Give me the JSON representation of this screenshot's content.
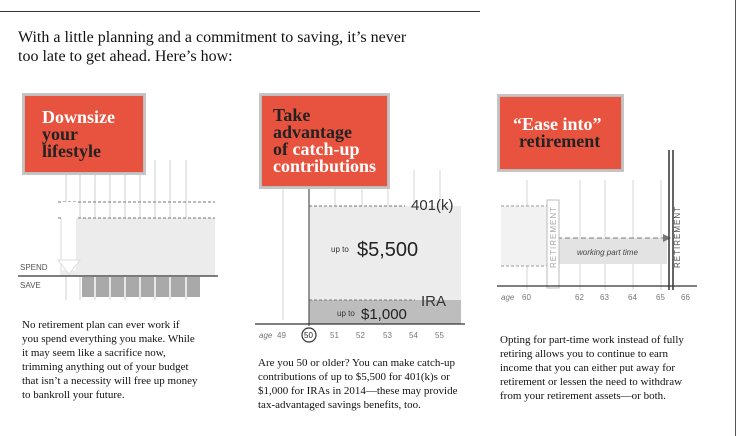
{
  "intro": {
    "line1": "With a little planning and a commitment to saving, it’s never",
    "line2": "too late to get ahead. Here’s how:"
  },
  "panel1": {
    "title_l1": "Downsize",
    "title_l2": "your",
    "title_l3": "lifestyle",
    "spend_label": "SPEND",
    "save_label": "SAVE",
    "body": [
      "No retirement plan can ever work if",
      "you spend everything you make. While",
      "it may seem like a sacrifice now,",
      "trimming anything out of your budget",
      "that isn’t a necessity will free up money",
      "to bankroll your future."
    ]
  },
  "panel2": {
    "title_l1": "Take",
    "title_l2": "advantage",
    "title_l3a": "of ",
    "title_l3b": "catch-up",
    "title_l4": "contributions",
    "label_401k": "401(k)",
    "upto_small_1": "up to",
    "amount_1": "$5,500",
    "label_ira": "IRA",
    "upto_small_2": "up to",
    "amount_2": "$1,000",
    "axis_age": "age",
    "ticks": [
      "49",
      "50",
      "51",
      "52",
      "53",
      "54",
      "55"
    ],
    "body": [
      "Are you 50 or older? You can make catch-up",
      "contributions of up to $5,500 for 401(k)s or",
      "$1,000 for IRAs in 2014—these may provide",
      "tax-advantaged savings benefits, too."
    ]
  },
  "panel3": {
    "title_l1": "“Ease into”",
    "title_l2": "retirement",
    "retirement_left": "RETIREMENT",
    "retirement_right": "RETIREMENT",
    "working_label": "working part time",
    "axis_age": "age",
    "ticks": [
      "60",
      "62",
      "63",
      "64",
      "65",
      "66"
    ],
    "body": [
      "Opting for part-time work instead of fully",
      "retiring allows you to continue to earn",
      "income that you can either put away for",
      "retirement or lessen the need to withdraw",
      "from your retirement assets—or both."
    ]
  },
  "colors": {
    "accent_red": "#e8533f",
    "gray_fill": "#bdbdbd",
    "light_fill": "#ececec"
  }
}
